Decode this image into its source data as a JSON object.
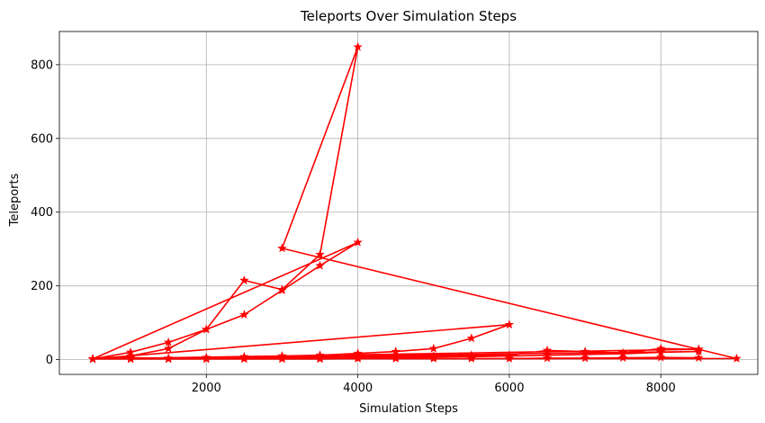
{
  "chart_data": {
    "type": "line",
    "title": "Teleports Over Simulation Steps",
    "xlabel": "Simulation Steps",
    "ylabel": "Teleports",
    "xlim": [
      60,
      9280
    ],
    "ylim": [
      -40,
      890
    ],
    "xticks": [
      2000,
      4000,
      6000,
      8000
    ],
    "yticks": [
      0,
      200,
      400,
      600,
      800
    ],
    "grid": true,
    "color": "#ff0000",
    "marker": "star",
    "series": [
      {
        "x": [
          500,
          1000,
          1500,
          2000,
          2500,
          3000,
          3500,
          4000,
          3000,
          8500,
          9000,
          500,
          1000,
          1500,
          2000,
          2500,
          3000,
          3500,
          4000,
          500,
          1000,
          1500,
          2000,
          2500,
          3000,
          3500,
          4000,
          4500,
          5000,
          5500,
          6000,
          500,
          1000,
          1500,
          2000,
          2500,
          3000,
          3500,
          4000,
          4500,
          5000,
          5500,
          6000,
          6500,
          7000,
          7500,
          8000,
          8500,
          500,
          1000,
          1500,
          2000,
          2500,
          3000,
          3500,
          4000,
          4500,
          5000,
          5500,
          6000,
          6500,
          7000,
          7500,
          8000,
          8500,
          500,
          1000,
          1500,
          2000,
          2500,
          3000,
          3500,
          4000,
          4500,
          5000,
          5500,
          6000,
          6500,
          7000,
          7500,
          8000,
          8500
        ],
        "y": [
          2,
          10,
          30,
          82,
          215,
          190,
          285,
          848,
          302,
          28,
          3,
          2,
          20,
          47,
          82,
          122,
          188,
          255,
          318,
          2,
          5,
          4,
          6,
          8,
          10,
          12,
          17,
          22,
          30,
          58,
          95,
          2,
          3,
          3,
          3,
          4,
          5,
          6,
          8,
          9,
          10,
          12,
          12,
          25,
          22,
          18,
          30,
          28,
          2,
          2,
          2,
          2,
          3,
          3,
          4,
          5,
          6,
          7,
          8,
          10,
          12,
          14,
          16,
          20,
          22,
          2,
          2,
          2,
          2,
          2,
          2,
          2,
          3,
          3,
          3,
          3,
          3,
          4,
          4,
          5,
          6,
          5
        ]
      }
    ]
  }
}
